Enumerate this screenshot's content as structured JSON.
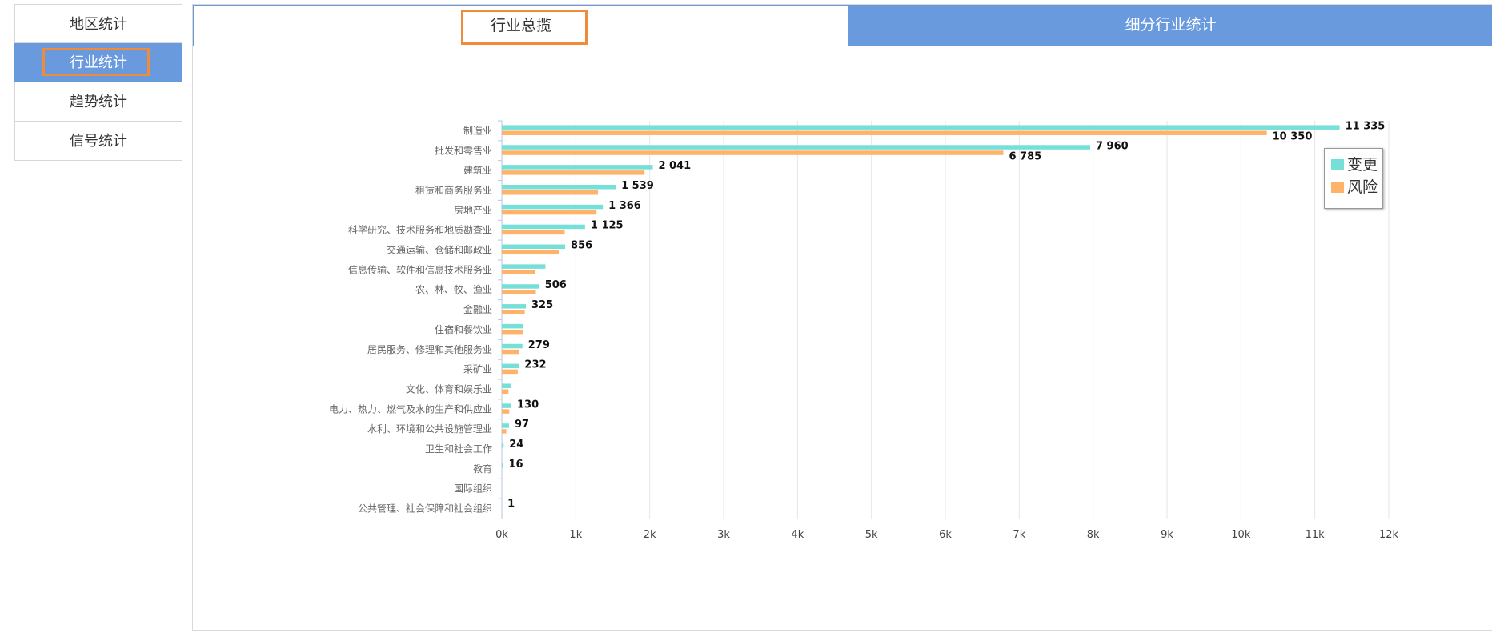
{
  "sidebar": {
    "items": [
      {
        "label": "地区统计",
        "active": false
      },
      {
        "label": "行业统计",
        "active": true
      },
      {
        "label": "趋势统计",
        "active": false
      },
      {
        "label": "信号统计",
        "active": false
      }
    ]
  },
  "tabs": {
    "overview_label": "行业总揽",
    "detail_label": "细分行业统计"
  },
  "colors": {
    "accent": "#6a9ade",
    "highlight": "#ee8c3c",
    "series_change": "#76e0d8",
    "series_risk": "#ffb369"
  },
  "legend": {
    "items": [
      {
        "label": "变更",
        "color": "#76e0d8"
      },
      {
        "label": "风险",
        "color": "#ffb369"
      }
    ]
  },
  "chart_data": {
    "type": "bar",
    "orientation": "horizontal",
    "title": "",
    "xlabel": "",
    "ylabel": "",
    "xlim": [
      0,
      12000
    ],
    "x_ticks": [
      "0k",
      "1k",
      "2k",
      "3k",
      "4k",
      "5k",
      "6k",
      "7k",
      "8k",
      "9k",
      "10k",
      "11k",
      "12k"
    ],
    "grid": "vertical",
    "legend_position": "top-right",
    "categories": [
      "制造业",
      "批发和零售业",
      "建筑业",
      "租赁和商务服务业",
      "房地产业",
      "科学研究、技术服务和地质勘查业",
      "交通运输、仓储和邮政业",
      "信息传输、软件和信息技术服务业",
      "农、林、牧、渔业",
      "金融业",
      "住宿和餐饮业",
      "居民服务、修理和其他服务业",
      "采矿业",
      "文化、体育和娱乐业",
      "电力、热力、燃气及水的生产和供应业",
      "水利、环境和公共设施管理业",
      "卫生和社会工作",
      "教育",
      "国际组织",
      "公共管理、社会保障和社会组织"
    ],
    "series": [
      {
        "name": "变更",
        "values": [
          11335,
          7960,
          2041,
          1539,
          1366,
          1125,
          856,
          590,
          506,
          325,
          290,
          279,
          232,
          120,
          130,
          97,
          24,
          16,
          0,
          1
        ],
        "labels": [
          "11 335",
          "7 960",
          "2 041",
          "1 539",
          "1 366",
          "1 125",
          "856",
          "",
          "506",
          "325",
          "",
          "279",
          "232",
          "",
          "130",
          "97",
          "24",
          "16",
          "",
          "1"
        ]
      },
      {
        "name": "风险",
        "values": [
          10350,
          6785,
          1930,
          1300,
          1280,
          850,
          780,
          450,
          460,
          310,
          285,
          230,
          215,
          90,
          100,
          60,
          5,
          3,
          0,
          0
        ],
        "labels": [
          "10 350",
          "6 785",
          "",
          "",
          "",
          "",
          "",
          "",
          "",
          "",
          "",
          "",
          "",
          "",
          "",
          "",
          "",
          "",
          "",
          ""
        ]
      }
    ]
  }
}
